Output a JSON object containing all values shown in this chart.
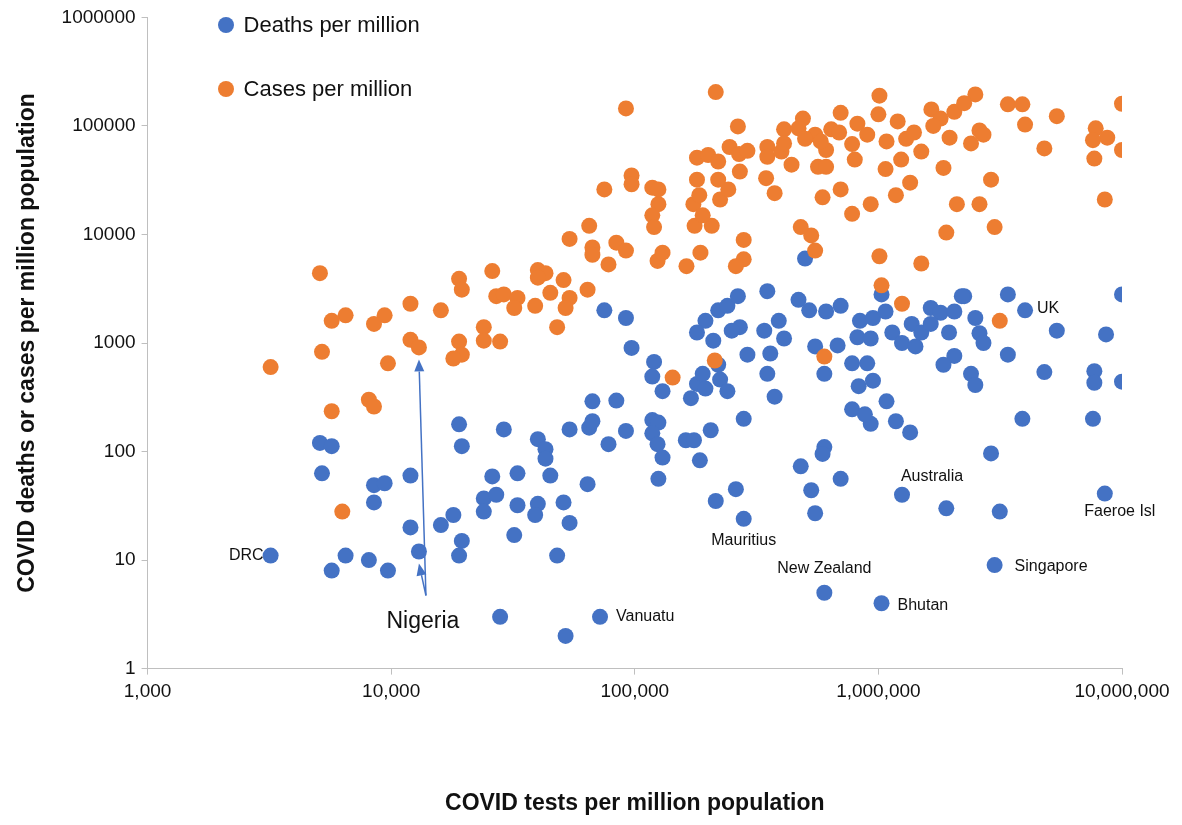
{
  "chart_data": {
    "type": "scatter",
    "xlabel": "COVID tests per million population",
    "ylabel": "COVID deaths or cases per million population",
    "log": "xy",
    "grid": false,
    "legend": "top left",
    "marker": "circle",
    "xlim": [
      1000,
      10000000
    ],
    "xticks": [
      {
        "value": 1000,
        "label": "1,000"
      },
      {
        "value": 10000,
        "label": "10,000"
      },
      {
        "value": 100000,
        "label": "100,000"
      },
      {
        "value": 1000000,
        "label": "1,000,000"
      },
      {
        "value": 10000000,
        "label": "10,000,000"
      }
    ],
    "ylim": [
      1,
      1000000
    ],
    "yticks": [
      1,
      10,
      100,
      1000,
      10000,
      100000,
      1000000
    ],
    "series": [
      {
        "name": "Deaths per million",
        "color": "#4472c4",
        "x": [
          3200,
          5100,
          5700,
          5200,
          5700,
          6500,
          8100,
          9700,
          8500,
          9400,
          8500,
          12000,
          12000,
          13000,
          19000,
          19500,
          16000,
          18000,
          19500,
          19000,
          29000,
          26000,
          33000,
          24000,
          27000,
          24000,
          33000,
          32000,
          40000,
          43000,
          43000,
          45000,
          40000,
          39000,
          51000,
          54000,
          48000,
          28000,
          52000,
          72000,
          54000,
          65000,
          67000,
          78000,
          64000,
          67000,
          84000,
          92000,
          75000,
          92000,
          97000,
          120000,
          118000,
          130000,
          118000,
          125000,
          118000,
          124000,
          130000,
          125000,
          162000,
          175000,
          205000,
          185000,
          170000,
          180000,
          190000,
          195000,
          220000,
          224000,
          240000,
          215000,
          260000,
          280000,
          280000,
          375000,
          350000,
          360000,
          410000,
          390000,
          340000,
          270000,
          250000,
          290000,
          220000,
          240000,
          195000,
          180000,
          210000,
          265000,
          350000,
          470000,
          520000,
          610000,
          700000,
          550000,
          600000,
          680000,
          780000,
          830000,
          900000,
          950000,
          840000,
          820000,
          930000,
          950000,
          1070000,
          1140000,
          1250000,
          1370000,
          1420000,
          1640000,
          1800000,
          2050000,
          1500000,
          1640000,
          1950000,
          2250000,
          2500000,
          2600000,
          2700000,
          2050000,
          1850000,
          2400000,
          2500000,
          3400000,
          4000000,
          3400000,
          5400000,
          8600000,
          10000000,
          4800000,
          7700000,
          7700000,
          10000000,
          3900000,
          7600000,
          2900000,
          1250000,
          1900000,
          3150000,
          8500000,
          3000000,
          600000,
          1030000,
          600000,
          590000,
          480000,
          530000,
          550000,
          700000,
          780000,
          930000,
          880000,
          1180000,
          1350000,
          1080000,
          500000,
          1030000,
          2200000
        ],
        "values": [
          11,
          120,
          112,
          63,
          8,
          11,
          10,
          8,
          49,
          51,
          34,
          60,
          20,
          12,
          178,
          112,
          21,
          26,
          15,
          11,
          160,
          59,
          63,
          37,
          40,
          28,
          32,
          17,
          130,
          105,
          86,
          60,
          33,
          26,
          34,
          22,
          11,
          3,
          2,
          3,
          160,
          166,
          190,
          117,
          50,
          290,
          295,
          155,
          2000,
          1700,
          900,
          670,
          490,
          360,
          195,
          185,
          147,
          117,
          88,
          56,
          127,
          127,
          157,
          83,
          310,
          420,
          520,
          380,
          630,
          460,
          360,
          35,
          45,
          24,
          200,
          320,
          520,
          800,
          1100,
          1600,
          1300,
          1400,
          1300,
          780,
          2000,
          2200,
          1600,
          1250,
          1050,
          2700,
          3000,
          2500,
          2000,
          1950,
          2200,
          930,
          520,
          950,
          650,
          400,
          650,
          450,
          1600,
          1130,
          1100,
          1700,
          1950,
          1250,
          1000,
          1500,
          930,
          2100,
          1900,
          1950,
          1250,
          1500,
          1250,
          2700,
          1700,
          1230,
          1000,
          760,
          630,
          520,
          410,
          780,
          2000,
          2800,
          1300,
          1200,
          2800,
          540,
          550,
          430,
          440,
          200,
          200,
          96,
          40,
          30,
          28,
          41,
          9,
          5,
          4,
          110,
          95,
          73,
          44,
          27,
          56,
          245,
          180,
          220,
          190,
          150,
          290,
          6000,
          2800,
          2700
        ]
      },
      {
        "name": "Cases per million",
        "color": "#ed7d31",
        "x": [
          92000,
          97000,
          97000,
          75000,
          65000,
          54000,
          67000,
          67000,
          84000,
          92000,
          78000,
          26000,
          40000,
          43000,
          40000,
          51000,
          45000,
          54000,
          52000,
          64000,
          39000,
          48000,
          27000,
          29000,
          33000,
          32000,
          19000,
          19500,
          16000,
          12000,
          9400,
          8500,
          6500,
          5700,
          5200,
          3200,
          5100,
          9700,
          12000,
          13000,
          19000,
          19500,
          18000,
          24000,
          24000,
          28000,
          5700,
          8100,
          8500,
          6300,
          215000,
          1010000,
          2500000,
          3400000,
          3900000,
          10000000,
          5400000,
          4000000,
          7800000,
          8700000,
          7600000,
          10000000,
          7700000,
          8500000,
          4800000,
          2900000,
          2400000,
          2600000,
          2700000,
          1960000,
          1850000,
          2600000,
          2100000,
          3000000,
          1900000,
          1500000,
          1010000,
          1030000,
          1250000,
          3150000,
          600000,
          213000,
          143000,
          550000,
          530000,
          480000,
          280000,
          280000,
          260000,
          186000,
          163000,
          124000,
          130000,
          118000,
          125000,
          125000,
          118000,
          120000,
          174000,
          176000,
          207000,
          190000,
          184000,
          180000,
          224000,
          242000,
          220000,
          180000,
          200000,
          220000,
          245000,
          268000,
          290000,
          270000,
          265000,
          346000,
          375000,
          350000,
          350000,
          400000,
          410000,
          440000,
          490000,
          470000,
          565000,
          610000,
          590000,
          700000,
          780000,
          930000,
          700000,
          550000,
          640000,
          690000,
          610000,
          780000,
          820000,
          900000,
          800000,
          1000000,
          1080000,
          1070000,
          1240000,
          1350000,
          1180000,
          1200000,
          1300000,
          1400000,
          1500000,
          1650000,
          1800000,
          1680000,
          2050000,
          2250000,
          580000,
          410000,
          500000
        ],
        "values": [
          145000,
          35000,
          29000,
          26000,
          12000,
          9100,
          7600,
          6500,
          8400,
          7100,
          5300,
          4600,
          4700,
          4400,
          4000,
          3800,
          2900,
          2600,
          2100,
          3100,
          2200,
          1400,
          2700,
          2800,
          2600,
          2100,
          3900,
          3100,
          2000,
          2300,
          1800,
          1500,
          1800,
          1600,
          830,
          600,
          4400,
          650,
          1070,
          910,
          1030,
          780,
          720,
          1400,
          1050,
          1030,
          235,
          300,
          260,
          28,
          205000,
          190000,
          195000,
          158000,
          158000,
          160000,
          123000,
          103000,
          95000,
          78000,
          74000,
          60000,
          50000,
          21000,
          62000,
          32000,
          69000,
          91000,
          83000,
          78000,
          41000,
          19000,
          19000,
          11700,
          10400,
          5400,
          6300,
          3400,
          2300,
          1600,
          750,
          690,
          480,
          7100,
          9800,
          11700,
          8900,
          5900,
          5100,
          6800,
          5100,
          5700,
          6800,
          27000,
          26000,
          19000,
          15000,
          11700,
          19000,
          12000,
          12000,
          15000,
          23000,
          32000,
          21000,
          26000,
          32000,
          51000,
          54000,
          47000,
          64000,
          55000,
          59000,
          38000,
          99000,
          33000,
          24000,
          64000,
          52000,
          58000,
          93000,
          44000,
          117000,
          95000,
          42000,
          42000,
          22000,
          26000,
          15500,
          19000,
          132000,
          83000,
          93000,
          87000,
          60000,
          68000,
          105000,
          83000,
          49000,
          128000,
          72000,
          40000,
          49000,
          30000,
          23000,
          110000,
          76000,
          87000,
          58000,
          142000,
          117000,
          100000,
          135000,
          162000,
          72000,
          69000,
          76000
        ]
      }
    ],
    "annotations": [
      {
        "text": "DRC",
        "x": 3200,
        "y": 11
      },
      {
        "text": "Nigeria",
        "x": 13000,
        "y": 12
      },
      {
        "text": "Vanuatu",
        "x": 72000,
        "y": 3
      },
      {
        "text": "Mauritius",
        "x": 280000,
        "y": 24
      },
      {
        "text": "New Zealand",
        "x": 600000,
        "y": 5
      },
      {
        "text": "Bhutan",
        "x": 1030000,
        "y": 4
      },
      {
        "text": "Australia",
        "x": 1250000,
        "y": 40
      },
      {
        "text": "Singapore",
        "x": 3000000,
        "y": 9
      },
      {
        "text": "Faeroe Isl",
        "x": 8500000,
        "y": 41
      },
      {
        "text": "UK",
        "x": 4000000,
        "y": 2000
      }
    ]
  }
}
